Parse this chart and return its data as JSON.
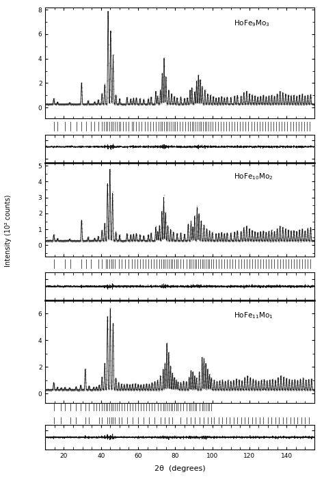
{
  "panels": [
    {
      "label": "HoFe$_9$Mo$_3$",
      "ylim": [
        -0.9,
        8.2
      ],
      "yticks": [
        0,
        2,
        4,
        6,
        8
      ],
      "diff_ylim": [
        -1.2,
        0.3
      ],
      "tick_rows": 1
    },
    {
      "label": "HoFe$_{10}$Mo$_2$",
      "ylim": [
        -0.7,
        5.2
      ],
      "yticks": [
        0,
        1,
        2,
        3,
        4,
        5
      ],
      "diff_ylim": [
        -1.0,
        0.3
      ],
      "tick_rows": 1
    },
    {
      "label": "HoFe$_{11}$Mo$_1$",
      "ylim": [
        -0.7,
        7.0
      ],
      "yticks": [
        0,
        2,
        4,
        6
      ],
      "diff_ylim": [
        -1.0,
        0.3
      ],
      "tick_rows": 2
    }
  ],
  "xlim": [
    10,
    155
  ],
  "xticks": [
    20,
    40,
    60,
    80,
    100,
    120,
    140
  ],
  "xlabel": "2θ  (degrees)",
  "ylabel": "Intensity (10² counts)",
  "bg_color": "#ffffff",
  "line_color": "#000000",
  "dot_color": "#666666",
  "diff_color": "#000000"
}
